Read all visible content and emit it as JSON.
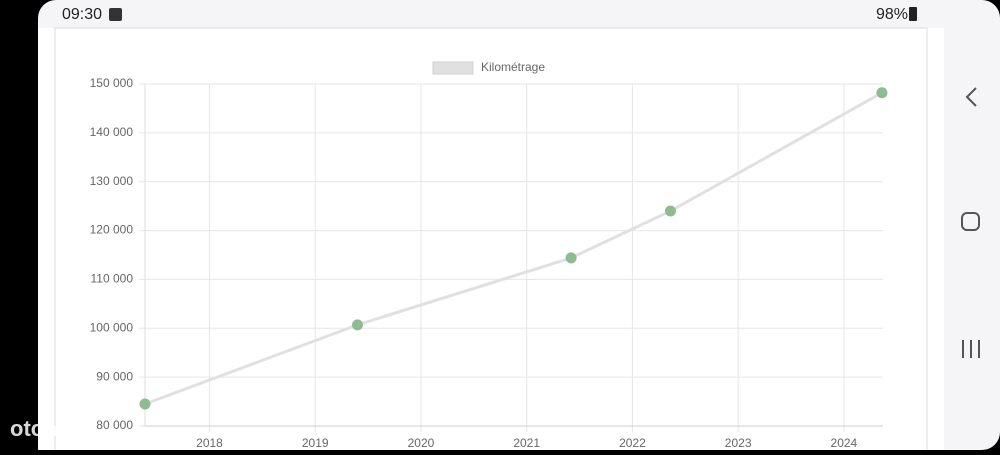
{
  "status_bar": {
    "time": "09:30",
    "battery": "98%"
  },
  "watermark": "otomoto",
  "chart_data": {
    "type": "line",
    "x": [
      2017.39,
      2019.4,
      2021.42,
      2022.36,
      2024.36
    ],
    "series": [
      {
        "name": "Kilométrage",
        "color": "#e0e0e0",
        "point_color": "#8fbc8f",
        "values": [
          84500,
          100700,
          114400,
          124000,
          148200
        ]
      }
    ],
    "xlim": [
      2017.39,
      2024.37
    ],
    "xticks": [
      2018,
      2019,
      2020,
      2021,
      2022,
      2023,
      2024
    ],
    "ylim": [
      80000,
      150000
    ],
    "yticks": [
      {
        "value": 80000,
        "label": "80 000"
      },
      {
        "value": 90000,
        "label": "90 000"
      },
      {
        "value": 100000,
        "label": "100 000"
      },
      {
        "value": 110000,
        "label": "110 000"
      },
      {
        "value": 120000,
        "label": "120 000"
      },
      {
        "value": 130000,
        "label": "130 000"
      },
      {
        "value": 140000,
        "label": "140 000"
      },
      {
        "value": 150000,
        "label": "150 000"
      }
    ],
    "grid": true,
    "legend": "top"
  }
}
